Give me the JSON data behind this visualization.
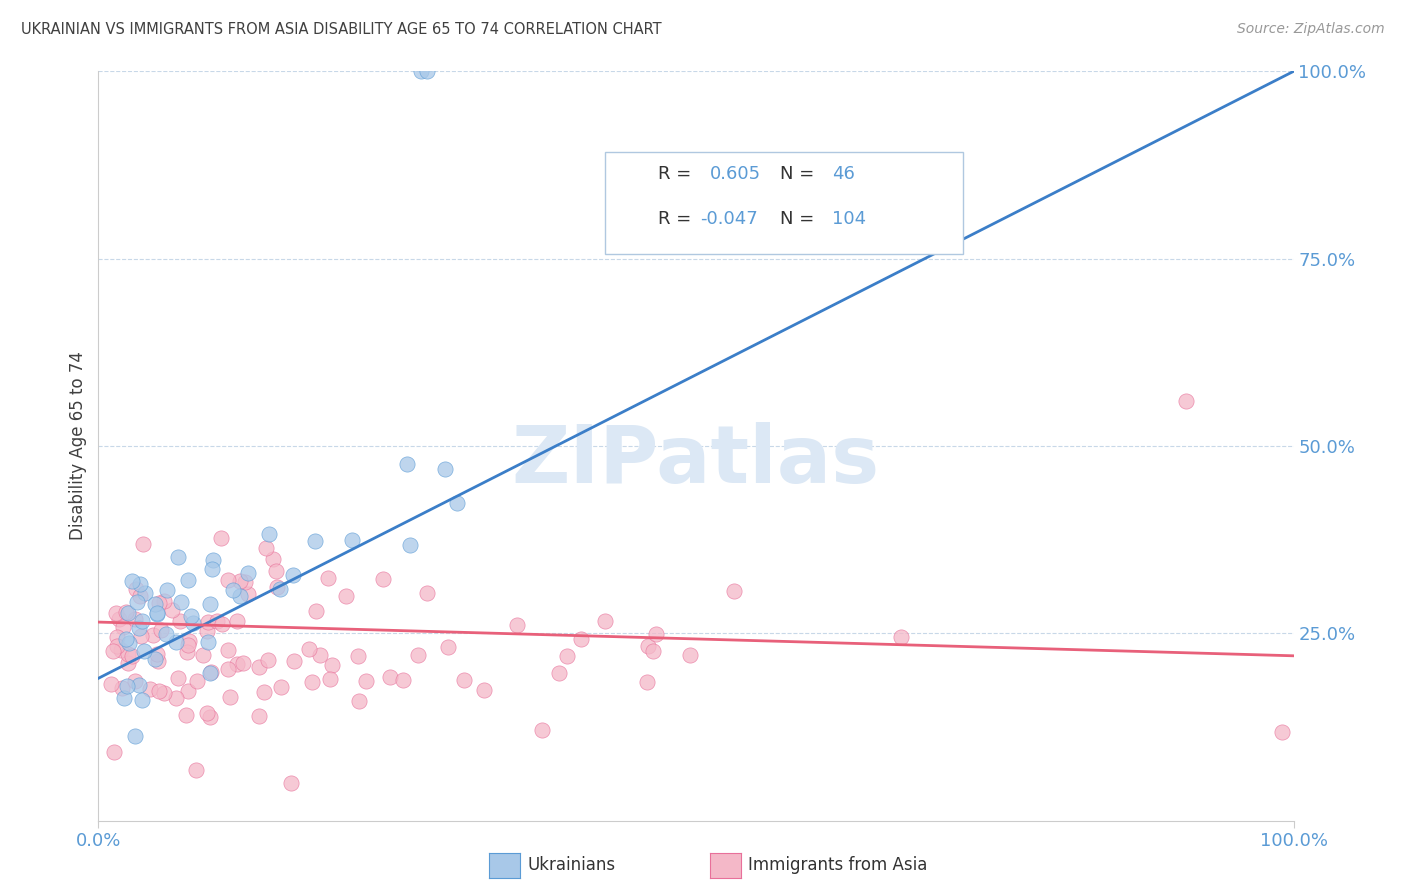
{
  "title": "UKRAINIAN VS IMMIGRANTS FROM ASIA DISABILITY AGE 65 TO 74 CORRELATION CHART",
  "source": "Source: ZipAtlas.com",
  "ylabel": "Disability Age 65 to 74",
  "blue_R": 0.605,
  "blue_N": 46,
  "pink_R": -0.047,
  "pink_N": 104,
  "blue_color": "#A8C8E8",
  "pink_color": "#F4B8C8",
  "blue_edge_color": "#5B9BD5",
  "pink_edge_color": "#E8709A",
  "blue_line_color": "#3B7EC8",
  "pink_line_color": "#E8607A",
  "title_color": "#404040",
  "source_color": "#999999",
  "axis_color": "#5B9BD5",
  "watermark_color": "#DCE8F5",
  "background_color": "#FFFFFF",
  "grid_color": "#C8D8E8",
  "xlim": [
    0,
    100
  ],
  "ylim": [
    0,
    100
  ],
  "blue_trend_x": [
    0,
    100
  ],
  "blue_trend_y": [
    19,
    100
  ],
  "pink_trend_x": [
    0,
    100
  ],
  "pink_trend_y": [
    26.5,
    22.0
  ],
  "blue_seed": 42,
  "pink_seed": 15
}
